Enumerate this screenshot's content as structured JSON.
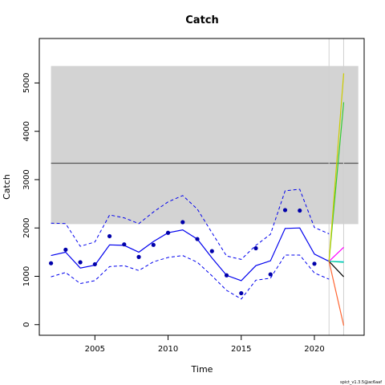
{
  "chart_data": {
    "type": "line",
    "title": "Catch",
    "xlabel": "Time",
    "ylabel": "Catch",
    "xlim": [
      2001.2,
      2023.4
    ],
    "ylim": [
      -220,
      5920
    ],
    "x_ticks": [
      2005,
      2010,
      2015,
      2020
    ],
    "y_ticks": [
      0,
      1000,
      2000,
      3000,
      4000,
      5000
    ],
    "grid": false,
    "legend": "none",
    "credit": "spict_v1.3.5@ac6aaf",
    "band": {
      "x_start": 2002,
      "x_end": 2023,
      "y_low": 2080,
      "y_high": 5350,
      "color": "#d3d3d3"
    },
    "reference_line": {
      "y": 3340,
      "x_start": 2002,
      "x_end": 2023,
      "color": "#555555"
    },
    "vertical_lines": [
      {
        "x": 2021,
        "color": "#d0d0d0"
      },
      {
        "x": 2022,
        "color": "#d0d0d0"
      }
    ],
    "observations": {
      "color": "#0000aa",
      "x": [
        2002,
        2003,
        2004,
        2005,
        2006,
        2007,
        2008,
        2009,
        2010,
        2011,
        2012,
        2013,
        2014,
        2015,
        2016,
        2017,
        2018,
        2019,
        2020
      ],
      "y": [
        1270,
        1550,
        1290,
        1250,
        1830,
        1660,
        1400,
        1650,
        1900,
        2120,
        1770,
        1520,
        1020,
        650,
        1580,
        1040,
        2370,
        2360,
        1260
      ]
    },
    "fit": {
      "color": "#0000ee",
      "x": [
        2002,
        2003,
        2004,
        2005,
        2006,
        2007,
        2008,
        2009,
        2010,
        2011,
        2012,
        2013,
        2014,
        2015,
        2016,
        2017,
        2018,
        2019,
        2020,
        2021
      ],
      "estimate": [
        1430,
        1500,
        1170,
        1230,
        1650,
        1640,
        1500,
        1720,
        1900,
        1960,
        1770,
        1380,
        1020,
        910,
        1220,
        1320,
        1990,
        2000,
        1460,
        1310
      ],
      "upper": [
        2100,
        2090,
        1620,
        1710,
        2270,
        2210,
        2090,
        2330,
        2540,
        2670,
        2390,
        1900,
        1420,
        1350,
        1640,
        1870,
        2770,
        2800,
        2010,
        1880
      ],
      "lower": [
        990,
        1080,
        850,
        910,
        1200,
        1220,
        1120,
        1300,
        1390,
        1430,
        1290,
        1010,
        710,
        530,
        920,
        960,
        1440,
        1440,
        1070,
        940
      ]
    },
    "scenarios": [
      {
        "color": "#000000",
        "x": [
          2021,
          2022
        ],
        "y": [
          1310,
          990
        ]
      },
      {
        "color": "#ff00ff",
        "x": [
          2021,
          2022
        ],
        "y": [
          1310,
          1600
        ]
      },
      {
        "color": "#00ccff",
        "x": [
          2021,
          2022
        ],
        "y": [
          1310,
          1300
        ]
      },
      {
        "color": "#00cc99",
        "x": [
          2021,
          2022
        ],
        "y": [
          1310,
          1290
        ]
      },
      {
        "color": "#ff6633",
        "x": [
          2021,
          2022
        ],
        "y": [
          1310,
          -20
        ]
      },
      {
        "color": "#33cc33",
        "x": [
          2021,
          2022
        ],
        "y": [
          1310,
          4600
        ]
      },
      {
        "color": "#cccc00",
        "x": [
          2021,
          2022
        ],
        "y": [
          1310,
          5200
        ]
      }
    ]
  }
}
